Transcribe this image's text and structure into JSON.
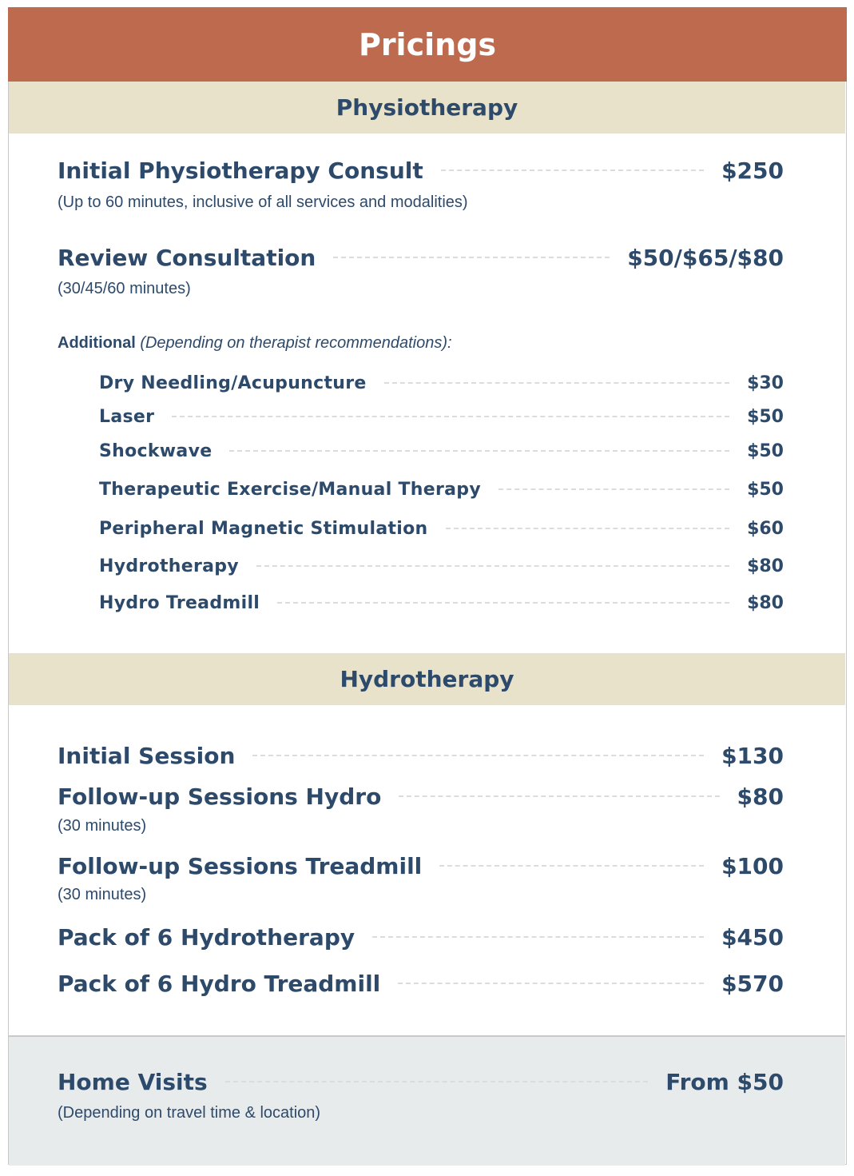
{
  "title": "Pricings",
  "physiotherapy": {
    "heading": "Physiotherapy",
    "items": [
      {
        "name": "Initial Physiotherapy Consult",
        "price": "$250",
        "note": "(Up to 60 minutes, inclusive of all services and modalities)"
      },
      {
        "name": "Review Consultation",
        "price": "$50/$65/$80",
        "note": "(30/45/60 minutes)"
      }
    ],
    "additional_label": "Additional",
    "additional_note": "(Depending on therapist recommendations):",
    "additional_items": [
      {
        "name": "Dry Needling/Acupuncture",
        "price": "$30"
      },
      {
        "name": "Laser",
        "price": "$50"
      },
      {
        "name": "Shockwave",
        "price": "$50"
      },
      {
        "name": "Therapeutic Exercise/Manual Therapy",
        "price": "$50"
      },
      {
        "name": "Peripheral Magnetic Stimulation",
        "price": "$60"
      },
      {
        "name": "Hydrotherapy",
        "price": "$80"
      },
      {
        "name": "Hydro Treadmill",
        "price": "$80"
      }
    ]
  },
  "hydrotherapy": {
    "heading": "Hydrotherapy",
    "items": [
      {
        "name": "Initial Session",
        "price": "$130"
      },
      {
        "name": "Follow-up Sessions Hydro",
        "price": "$80",
        "note": "(30 minutes)"
      },
      {
        "name": "Follow-up Sessions Treadmill",
        "price": "$100",
        "note": "(30 minutes)"
      },
      {
        "name": "Pack of 6 Hydrotherapy",
        "price": "$450"
      },
      {
        "name": "Pack of 6 Hydro Treadmill",
        "price": "$570"
      }
    ]
  },
  "home_visits": {
    "name": "Home Visits",
    "price": "From $50",
    "note": "(Depending on travel time & location)"
  },
  "colors": {
    "header": "#bd6a4f",
    "band": "#e8e2cb",
    "text": "#2d4a6b",
    "footer": "#e8ebec"
  }
}
